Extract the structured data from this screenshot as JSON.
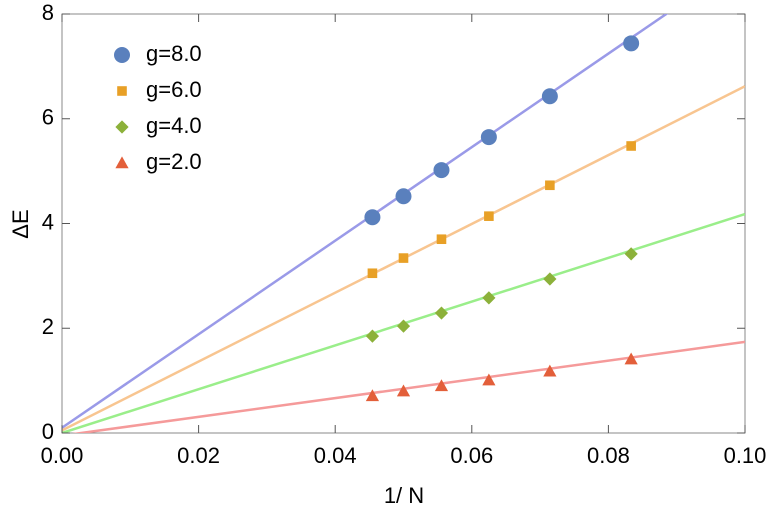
{
  "chart_data": {
    "type": "scatter",
    "x_label": "1/ N",
    "y_label": "ΔE",
    "x": [
      0.04545,
      0.05,
      0.05556,
      0.0625,
      0.07143,
      0.08333
    ],
    "fit_x": [
      0,
      0.1
    ],
    "series": [
      {
        "name": "g=8.0",
        "color": "#5a80bd",
        "marker": "circle",
        "line_color": "#9a9ae8",
        "values": [
          4.12,
          4.52,
          5.02,
          5.65,
          6.43,
          7.44
        ],
        "fit": [
          0.1,
          9.03
        ]
      },
      {
        "name": "g=6.0",
        "color": "#e8a026",
        "marker": "square",
        "line_color": "#f8c590",
        "values": [
          3.05,
          3.34,
          3.7,
          4.14,
          4.73,
          5.48
        ],
        "fit": [
          0.05,
          6.62
        ]
      },
      {
        "name": "g=4.0",
        "color": "#8cb13a",
        "marker": "diamond",
        "line_color": "#9aee8a",
        "values": [
          1.85,
          2.04,
          2.29,
          2.58,
          2.94,
          3.42
        ],
        "fit": [
          0,
          4.18
        ]
      },
      {
        "name": "g=2.0",
        "color": "#e35f3a",
        "marker": "triangle",
        "line_color": "#f59a9a",
        "values": [
          0.71,
          0.8,
          0.9,
          1.01,
          1.18,
          1.41
        ],
        "fit": [
          -0.05,
          1.74
        ]
      }
    ],
    "xlim": [
      0,
      0.1
    ],
    "xticks": [
      {
        "value": 0,
        "label": "0.00"
      },
      {
        "value": 0.02,
        "label": "0.02"
      },
      {
        "value": 0.04,
        "label": "0.04"
      },
      {
        "value": 0.06,
        "label": "0.06"
      },
      {
        "value": 0.08,
        "label": "0.08"
      },
      {
        "value": 0.1,
        "label": "0.10"
      }
    ],
    "ylim": [
      0,
      8
    ],
    "yticks": [
      0,
      2,
      4,
      6,
      8
    ],
    "legend": "upper-left"
  }
}
